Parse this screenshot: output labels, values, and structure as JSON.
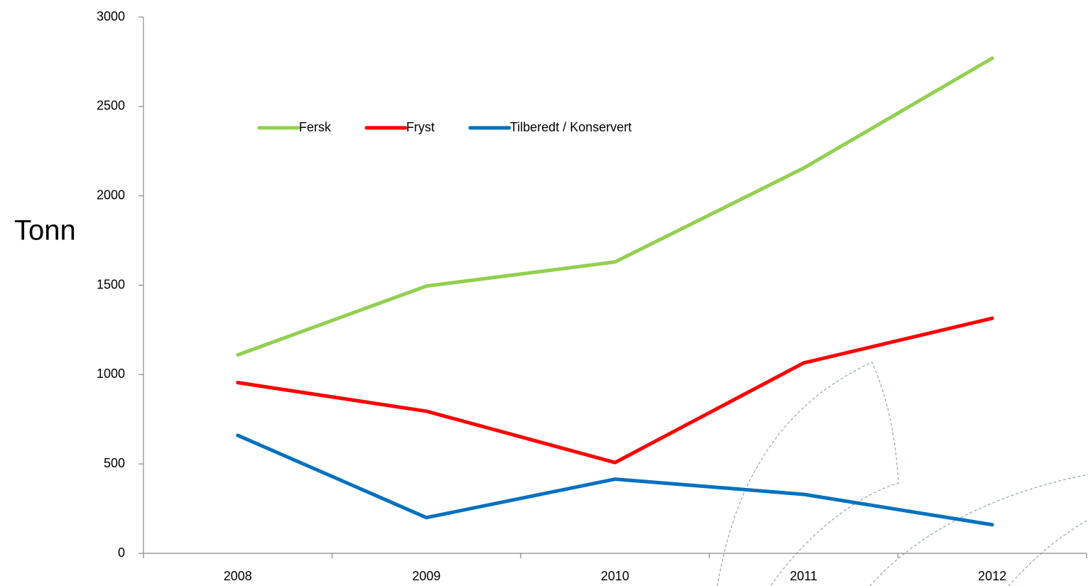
{
  "chart_data": {
    "type": "line",
    "y_label": "Tonn",
    "categories": [
      "2008",
      "2009",
      "2010",
      "2011",
      "2012"
    ],
    "series": [
      {
        "name": "Fersk",
        "color": "#92d050",
        "values": [
          1110,
          1495,
          1630,
          2155,
          2770
        ]
      },
      {
        "name": "Fryst",
        "color": "#ff0000",
        "values": [
          955,
          795,
          508,
          1065,
          1315
        ]
      },
      {
        "name": "Tilberedt / Konservert",
        "color": "#0070c0",
        "values": [
          660,
          200,
          415,
          330,
          160
        ]
      }
    ],
    "ylim": [
      0,
      3000
    ],
    "yticks": [
      0,
      500,
      1000,
      1500,
      2000,
      2500,
      3000
    ],
    "grid": false,
    "legend": "top"
  }
}
